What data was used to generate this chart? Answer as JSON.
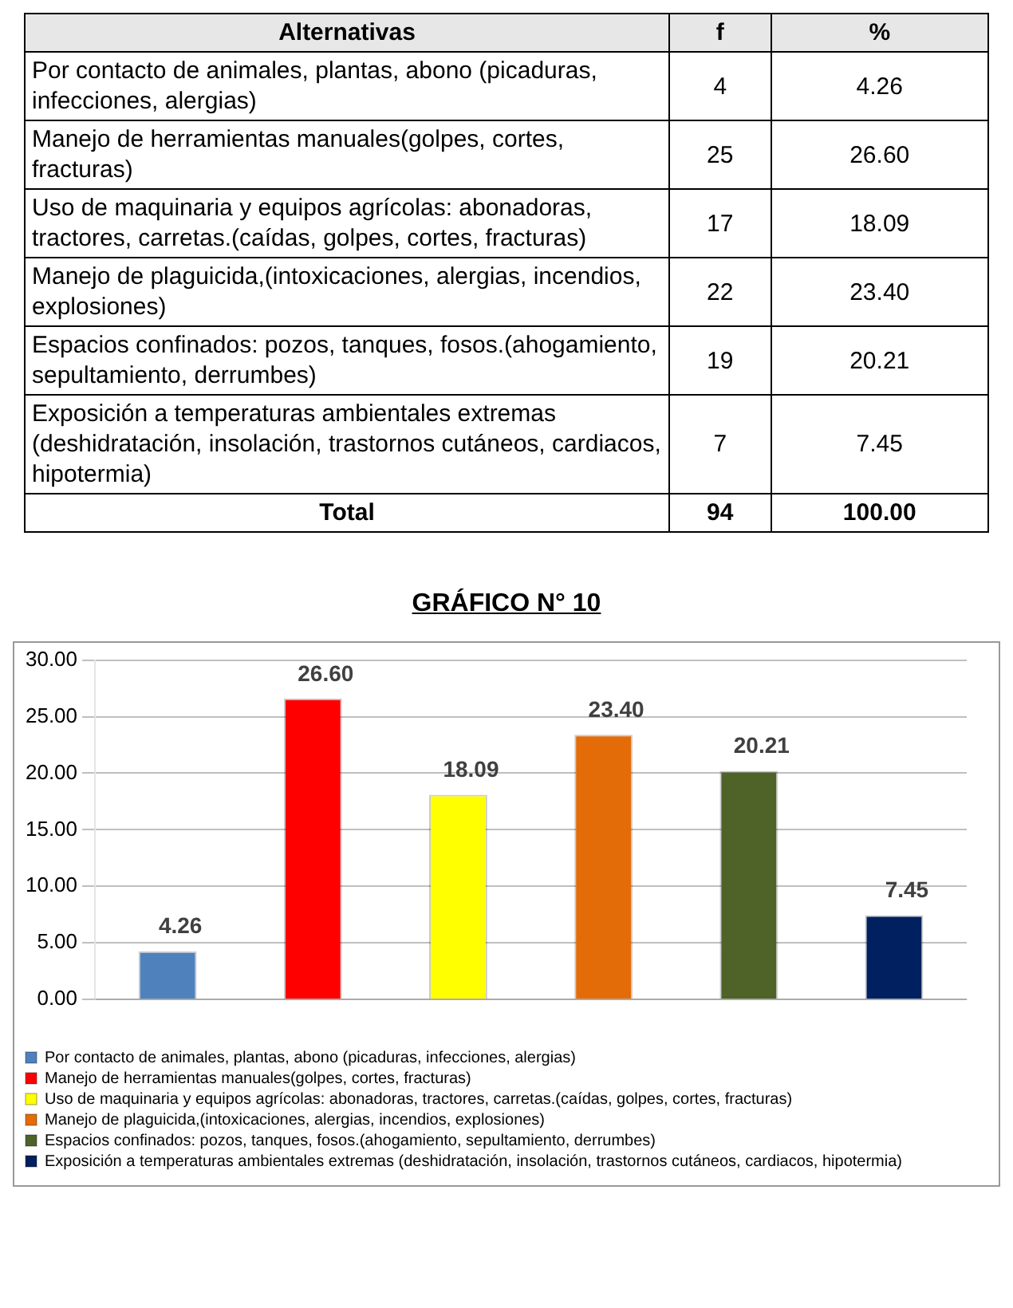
{
  "chart_data": [
    {
      "type": "other",
      "data_labels": true,
      "xlabel": "Alternativas",
      "categories": [
        "Por contacto de animales, plantas, abono (picaduras, infecciones, alergias)",
        "Manejo de herramientas manuales(golpes, cortes, fracturas)",
        "Uso de maquinaria y equipos agrícolas: abonadoras, tractores, carretas.(caídas, golpes, cortes, fracturas)",
        "Manejo de plaguicida,(intoxicaciones, alergias, incendios, explosiones)",
        "Espacios confinados: pozos, tanques, fosos.(ahogamiento, sepultamiento, derrumbes)",
        "Exposición a temperaturas ambientales extremas (deshidratación, insolación, trastornos cutáneos, cardiacos, hipotermia)",
        "Total"
      ],
      "series": [
        {
          "name": "f",
          "values": [
            4,
            25,
            17,
            22,
            19,
            7,
            94
          ]
        },
        {
          "name": "%",
          "values": [
            4.26,
            26.6,
            18.09,
            23.4,
            20.21,
            7.45,
            100
          ],
          "value_labels": [
            "4.26",
            "26.60",
            "18.09",
            "23.40",
            "20.21",
            "7.45",
            "100.00"
          ]
        }
      ]
    },
    {
      "type": "bar",
      "title": "GRÁFICO N° 10",
      "categories": [
        null,
        null,
        null,
        null,
        null,
        null
      ],
      "series": [
        {
          "name": "Por contacto de animales, plantas, abono (picaduras, infecciones, alergias)",
          "color": "#4f81bd",
          "values": [
            4.26,
            null,
            null,
            null,
            null,
            null
          ],
          "value_labels": [
            "4.26",
            null,
            null,
            null,
            null,
            null
          ]
        },
        {
          "name": "Manejo de herramientas manuales(golpes, cortes, fracturas)",
          "color": "#ff0000",
          "values": [
            null,
            26.6,
            null,
            null,
            null,
            null
          ],
          "value_labels": [
            null,
            "26.60",
            null,
            null,
            null,
            null
          ]
        },
        {
          "name": "Uso de maquinaria y equipos agrícolas: abonadoras, tractores, carretas.(caídas, golpes, cortes, fracturas)",
          "color": "#ffff00",
          "values": [
            null,
            null,
            18.09,
            null,
            null,
            null
          ],
          "value_labels": [
            null,
            null,
            "18.09",
            null,
            null,
            null
          ]
        },
        {
          "name": "Manejo de plaguicida,(intoxicaciones, alergias, incendios, explosiones)",
          "color": "#e36c09",
          "values": [
            null,
            null,
            null,
            23.4,
            null,
            null
          ],
          "value_labels": [
            null,
            null,
            null,
            "23.40",
            null,
            null
          ]
        },
        {
          "name": "Espacios confinados: pozos, tanques, fosos.(ahogamiento, sepultamiento, derrumbes)",
          "color": "#4f6228",
          "values": [
            null,
            null,
            null,
            null,
            20.21,
            null
          ],
          "value_labels": [
            null,
            null,
            null,
            null,
            "20.21",
            null
          ]
        },
        {
          "name": "Exposición a temperaturas ambientales extremas (deshidratación, insolación, trastornos cutáneos, cardiacos, hipotermia)",
          "color": "#002060",
          "values": [
            null,
            null,
            null,
            null,
            null,
            7.45
          ],
          "value_labels": [
            null,
            null,
            null,
            null,
            null,
            "7.45"
          ]
        }
      ],
      "ylim": [
        0,
        30
      ],
      "yticks": [
        {
          "value": 0,
          "label": "0.00"
        },
        {
          "value": 5,
          "label": "5.00"
        },
        {
          "value": 10,
          "label": "10.00"
        },
        {
          "value": 15,
          "label": "15.00"
        },
        {
          "value": 20,
          "label": "20.00"
        },
        {
          "value": 25,
          "label": "25.00"
        },
        {
          "value": 30,
          "label": "30.00"
        }
      ],
      "grid": "y",
      "legend": "bottom"
    }
  ]
}
